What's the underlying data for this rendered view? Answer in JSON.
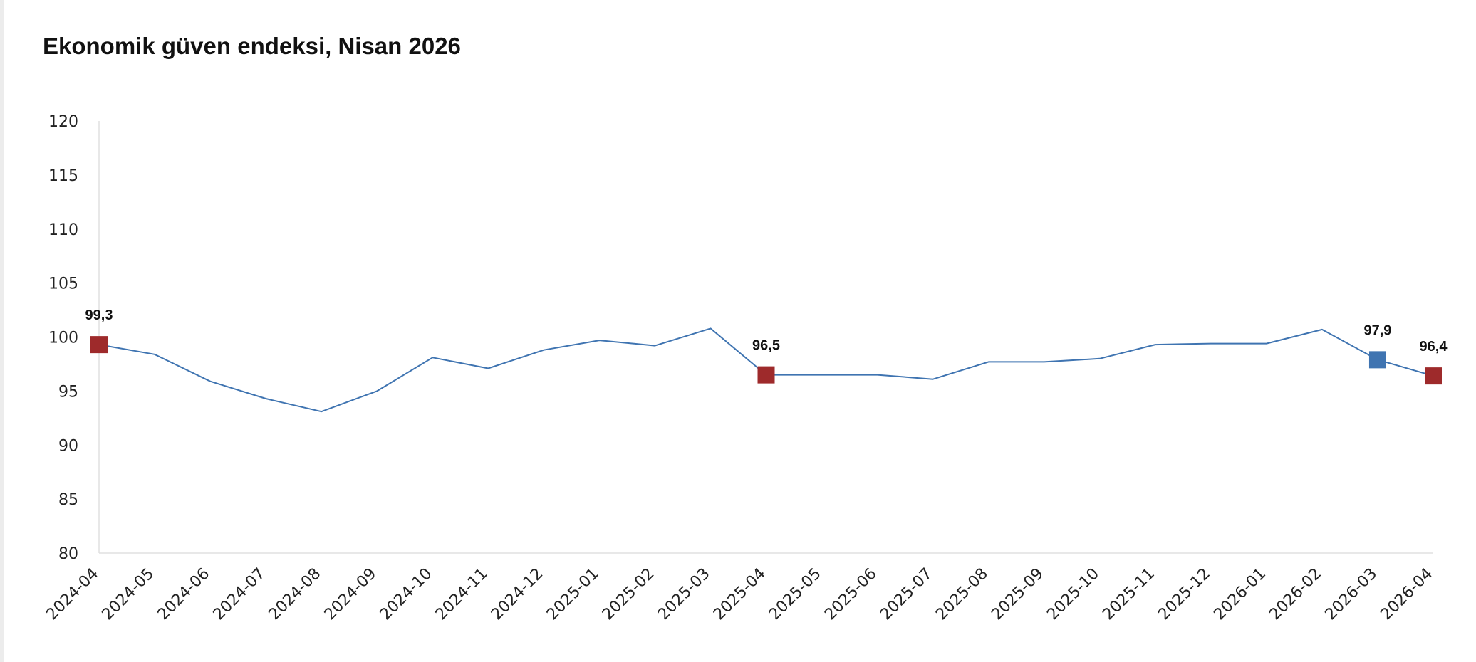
{
  "chart_data": {
    "type": "line",
    "title": "Ekonomik güven endeksi, Nisan 2026",
    "xlabel": "",
    "ylabel": "",
    "ylim": [
      80,
      120
    ],
    "yticks": [
      80,
      85,
      90,
      95,
      100,
      105,
      110,
      115,
      120
    ],
    "grid": false,
    "legend": "none",
    "categories": [
      "2024-04",
      "2024-05",
      "2024-06",
      "2024-07",
      "2024-08",
      "2024-09",
      "2024-10",
      "2024-11",
      "2024-12",
      "2025-01",
      "2025-02",
      "2025-03",
      "2025-04",
      "2025-05",
      "2025-06",
      "2025-07",
      "2025-08",
      "2025-09",
      "2025-10",
      "2025-11",
      "2025-12",
      "2026-01",
      "2026-02",
      "2026-03",
      "2026-04"
    ],
    "series": [
      {
        "values": [
          99.3,
          98.4,
          95.9,
          94.3,
          93.1,
          95.0,
          98.1,
          97.1,
          98.8,
          99.7,
          99.2,
          100.8,
          96.5,
          96.5,
          96.5,
          96.1,
          97.7,
          97.7,
          98.0,
          99.3,
          99.4,
          99.4,
          100.7,
          97.9,
          96.4
        ],
        "color": "#3f74b1"
      }
    ],
    "highlights": [
      {
        "index": 0,
        "label": "99,3",
        "color": "#9e2a2b"
      },
      {
        "index": 12,
        "label": "96,5",
        "color": "#9e2a2b"
      },
      {
        "index": 23,
        "label": "97,9",
        "color": "#3f74b1"
      },
      {
        "index": 24,
        "label": "96,4",
        "color": "#9e2a2b"
      }
    ]
  }
}
